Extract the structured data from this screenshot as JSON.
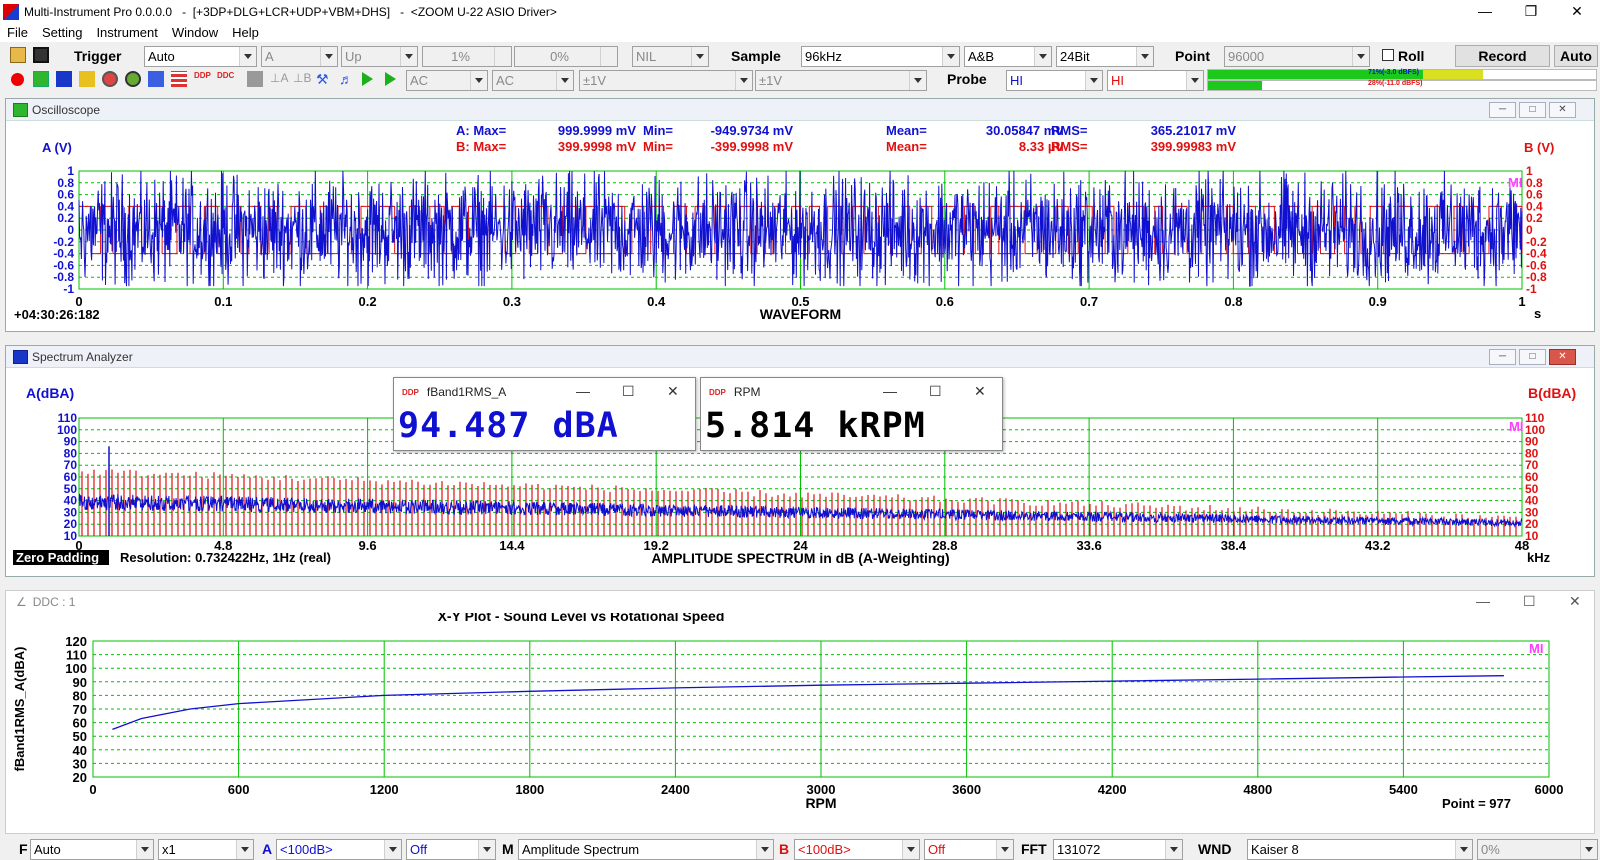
{
  "title": "Multi-Instrument Pro 0.0.0.0   -  [+3DP+DLG+LCR+UDP+VBM+DHS]   -  <ZOOM U-22 ASIO Driver>",
  "menu": [
    "File",
    "Setting",
    "Instrument",
    "Window",
    "Help"
  ],
  "toolbar1": {
    "trigger_label": "Trigger",
    "trigger_mode": "Auto",
    "trigger_channel": "A",
    "trigger_edge": "Up",
    "level": "1%",
    "delay": "0%",
    "nil": "NIL",
    "sample_label": "Sample",
    "sample_rate": "96kHz",
    "channels": "A&B",
    "bits": "24Bit",
    "point_label": "Point",
    "points": "96000",
    "roll": "Roll",
    "record": "Record",
    "auto": "Auto"
  },
  "toolbar2": {
    "coupling_a": "AC",
    "coupling_b": "AC",
    "range_a": "±1V",
    "range_b": "±1V",
    "probe_label": "Probe",
    "probe_a": "HI",
    "probe_b": "HI",
    "meter_a": "71%(-3.0 dBFS)",
    "meter_b": "28%(-11.0 dBFS)",
    "meter_a_frac": 0.71,
    "meter_b_frac": 0.28
  },
  "colors": {
    "a": "#1010d0",
    "b": "#e01010",
    "grid": "#00c000",
    "mi": "#ff40ff"
  },
  "osc": {
    "title": "Oscilloscope",
    "a_label": "A (V)",
    "b_label": "B (V)",
    "a_stats": {
      "max_l": "A: Max=",
      "max": "999.9999 mV",
      "min_l": "Min=",
      "min": "-949.9734 mV",
      "mean_l": "Mean=",
      "mean": "30.05847 mV",
      "rms_l": "RMS=",
      "rms": "365.21017 mV"
    },
    "b_stats": {
      "max_l": "B: Max=",
      "max": "399.9998 mV",
      "min_l": "Min=",
      "min": "-399.9998 mV",
      "mean_l": "Mean=",
      "mean": "8.33  µV",
      "rms_l": "RMS=",
      "rms": "399.99983 mV"
    },
    "timestamp": "+04:30:26:182",
    "xlabel": "WAVEFORM",
    "xunit": "s",
    "mi": "MI",
    "yticks": [
      "1",
      "0.8",
      "0.6",
      "0.4",
      "0.2",
      "0",
      "-0.2",
      "-0.4",
      "-0.6",
      "-0.8",
      "-1"
    ],
    "xticks": [
      "0",
      "0.1",
      "0.2",
      "0.3",
      "0.4",
      "0.5",
      "0.6",
      "0.7",
      "0.8",
      "0.9",
      "1"
    ]
  },
  "spec": {
    "title": "Spectrum Analyzer",
    "a_label": "A(dBA)",
    "b_label": "B(dBA)",
    "zero_padding": "Zero Padding",
    "resolution": "Resolution: 0.732422Hz, 1Hz (real)",
    "xlabel": "AMPLITUDE SPECTRUM in dB (A-Weighting)",
    "xunit": "kHz",
    "mi": "MI",
    "yticks": [
      "110",
      "100",
      "90",
      "80",
      "70",
      "60",
      "50",
      "40",
      "30",
      "20",
      "10"
    ],
    "xticks": [
      "0",
      "4.8",
      "9.6",
      "14.4",
      "19.2",
      "24",
      "28.8",
      "33.6",
      "38.4",
      "43.2",
      "48"
    ]
  },
  "float1": {
    "title": "fBand1RMS_A",
    "value": "94.487 dBA"
  },
  "float2": {
    "title": "RPM",
    "value": "5.814 kRPM"
  },
  "ddc": {
    "title": "DDC : 1",
    "chart_title": "X-Y Plot - Sound Level vs Rotational Speed",
    "ylabel": "fBand1RMS_A(dBA)",
    "xlabel": "RPM",
    "point": "Point = 977",
    "mi": "MI",
    "yticks": [
      "120",
      "110",
      "100",
      "90",
      "80",
      "70",
      "60",
      "50",
      "40",
      "30",
      "20"
    ],
    "xticks": [
      "0",
      "600",
      "1200",
      "1800",
      "2400",
      "3000",
      "3600",
      "4200",
      "4800",
      "5400",
      "6000"
    ]
  },
  "chart_data": {
    "type": "line",
    "title": "X-Y Plot - Sound Level vs Rotational Speed",
    "xlabel": "RPM",
    "ylabel": "fBand1RMS_A(dBA)",
    "xlim": [
      0,
      6000
    ],
    "ylim": [
      20,
      120
    ],
    "series": [
      {
        "x": [
          80,
          200,
          400,
          600,
          900,
          1200,
          1800,
          2400,
          3000,
          3600,
          4200,
          4800,
          5400,
          5814
        ],
        "y": [
          55,
          63,
          70,
          74,
          77,
          80,
          83,
          85.5,
          87.5,
          89,
          90.5,
          92,
          93.5,
          94.5
        ]
      }
    ]
  },
  "statusbar": {
    "f_label": "F",
    "f_mode": "Auto",
    "mult": "x1",
    "a_label": "A",
    "a_range": "<100dB>",
    "a_off": "Off",
    "m_label": "M",
    "m_mode": "Amplitude Spectrum",
    "b_label": "B",
    "b_range": "<100dB>",
    "b_off": "Off",
    "fft_label": "FFT",
    "fft": "131072",
    "wnd_label": "WND",
    "wnd": "Kaiser 8",
    "pct": "0%"
  }
}
